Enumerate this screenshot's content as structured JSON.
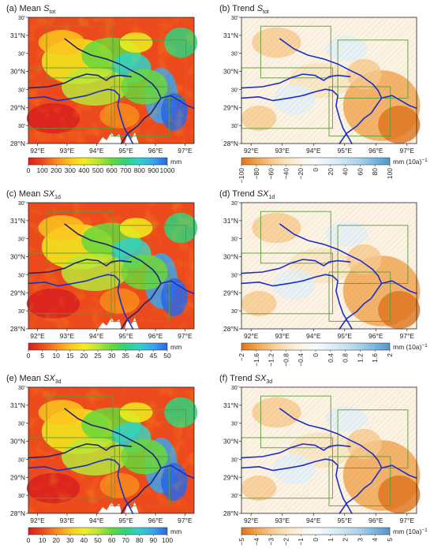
{
  "panels": [
    {
      "id": "a",
      "label": "(a) Mean ",
      "symbol": "S",
      "sub": "tot",
      "cmap": "mean",
      "cb_ticks": [
        "0",
        "100",
        "200",
        "300",
        "400",
        "500",
        "600",
        "700",
        "800",
        "900",
        "1000"
      ],
      "unit": "mm",
      "unit_sup": ""
    },
    {
      "id": "b",
      "label": "(b) Trend ",
      "symbol": "S",
      "sub": "tot",
      "cmap": "trend",
      "cb_ticks": [
        "−100",
        "−80",
        "−60",
        "−40",
        "−20",
        "0",
        "20",
        "40",
        "60",
        "80",
        "100"
      ],
      "unit": "mm (10a)",
      "unit_sup": "−1"
    },
    {
      "id": "c",
      "label": "(c) Mean ",
      "symbol": "SX",
      "sub": "1d",
      "cmap": "mean",
      "cb_ticks": [
        "0",
        "5",
        "10",
        "15",
        "20",
        "25",
        "30",
        "35",
        "40",
        "45",
        "50"
      ],
      "unit": "mm",
      "unit_sup": ""
    },
    {
      "id": "d",
      "label": "(d) Trend ",
      "symbol": "SX",
      "sub": "1d",
      "cmap": "trend",
      "cb_ticks": [
        "−2",
        "−1.6",
        "−1.2",
        "−0.8",
        "−0.4",
        "0",
        "0.4",
        "0.8",
        "1.2",
        "1.6",
        "2"
      ],
      "unit": "mm (10a)",
      "unit_sup": "−1"
    },
    {
      "id": "e",
      "label": "(e) Mean ",
      "symbol": "SX",
      "sub": "3d",
      "cmap": "mean",
      "cb_ticks": [
        "0",
        "10",
        "20",
        "30",
        "40",
        "50",
        "60",
        "70",
        "80",
        "90",
        "100"
      ],
      "unit": "mm",
      "unit_sup": ""
    },
    {
      "id": "f",
      "label": "(f) Trend ",
      "symbol": "SX",
      "sub": "3d",
      "cmap": "trend",
      "cb_ticks": [
        "−5",
        "−4",
        "−3",
        "−2",
        "−1",
        "0",
        "1",
        "2",
        "3",
        "4",
        "5"
      ],
      "unit": "mm (10a)",
      "unit_sup": "−1"
    }
  ],
  "x_ticks": [
    "92°E",
    "93°E",
    "94°E",
    "95°E",
    "96°E",
    "97°E"
  ],
  "y_ticks": [
    {
      "t": "30'",
      "small": true
    },
    {
      "t": "31°N",
      "small": false
    },
    {
      "t": "30'",
      "small": true
    },
    {
      "t": "30°N",
      "small": false
    },
    {
      "t": "30'",
      "small": true
    },
    {
      "t": "29°N",
      "small": false
    },
    {
      "t": "30'",
      "small": true
    },
    {
      "t": "28°N",
      "small": false
    }
  ],
  "colors": {
    "mean_scale": [
      "#d81e1e",
      "#ec4a1c",
      "#f88a1c",
      "#fbc51f",
      "#f2ee1f",
      "#b8e63a",
      "#66d83c",
      "#2fd37d",
      "#2fd2c9",
      "#3aa3ee",
      "#2a66e8"
    ],
    "trend_scale": [
      "#e0731c",
      "#f1a24a",
      "#f7c98c",
      "#fbe3bf",
      "#fdf3e3",
      "#f8fbfd",
      "#e2f0f8",
      "#c9e3f1",
      "#a6d0ea",
      "#79b5dd",
      "#4f97cc"
    ],
    "river": "#1a2fc8",
    "box": "#5c9b3a"
  }
}
